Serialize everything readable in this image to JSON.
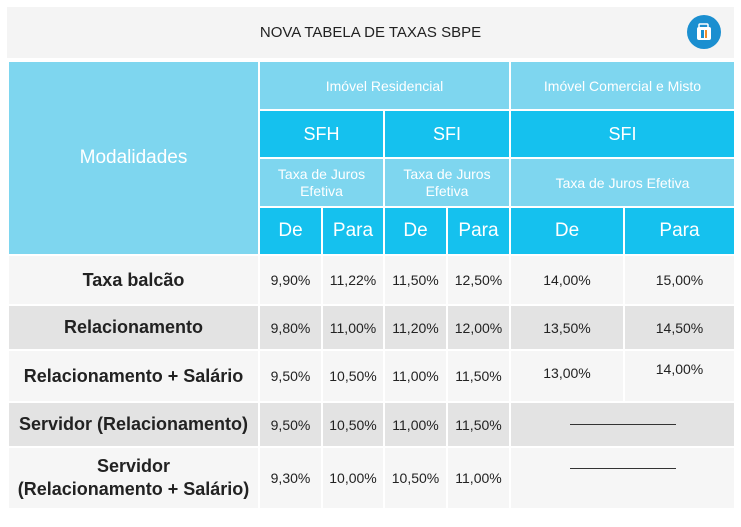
{
  "title": "NOVA TABELA DE TAXAS SBPE",
  "logo_icon": "caixa-logo-icon",
  "colors": {
    "header_light": "#7ed6ef",
    "header_dark": "#15c1ee",
    "row_light": "#f6f6f6",
    "row_dark": "#e3e3e3",
    "logo_blue": "#1b8fd0"
  },
  "header": {
    "modalidades": "Modalidades",
    "residencial": "Imóvel Residencial",
    "comercial": "Imóvel Comercial e Misto",
    "sfh": "SFH",
    "sfi_res": "SFI",
    "sfi_com": "SFI",
    "taxa_sfh": "Taxa de Juros Efetiva",
    "taxa_sfi_res": "Taxa de Juros Efetiva",
    "taxa_sfi_com": "Taxa de Juros Efetiva",
    "de": "De",
    "para": "Para"
  },
  "rows": [
    {
      "label": "Taxa balcão",
      "values": [
        "9,90%",
        "11,22%",
        "11,50%",
        "12,50%",
        "14,00%",
        "15,00%"
      ]
    },
    {
      "label": "Relacionamento",
      "values": [
        "9,80%",
        "11,00%",
        "11,20%",
        "12,00%",
        "13,50%",
        "14,50%"
      ]
    },
    {
      "label": "Relacionamento + Salário",
      "values": [
        "9,50%",
        "10,50%",
        "11,00%",
        "11,50%",
        "13,00%",
        "14,00%"
      ]
    },
    {
      "label": "Servidor (Relacionamento)",
      "values": [
        "9,50%",
        "10,50%",
        "11,00%",
        "11,50%"
      ]
    },
    {
      "label": "Servidor (Relacionamento + Salário)",
      "label_line1": "Servidor",
      "label_line2": "(Relacionamento + Salário)",
      "values": [
        "9,30%",
        "10,00%",
        "10,50%",
        "11,00%"
      ]
    }
  ]
}
